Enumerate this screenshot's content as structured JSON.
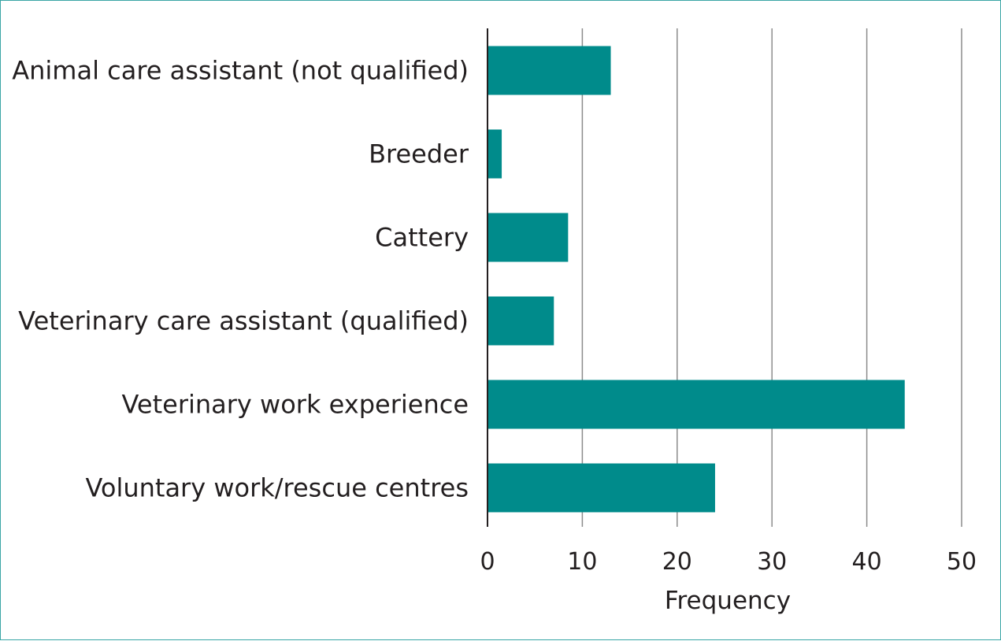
{
  "chart_data": {
    "type": "bar",
    "orientation": "horizontal",
    "categories": [
      "Animal care assistant (not qualified)",
      "Breeder",
      "Cattery",
      "Veterinary care assistant (qualified)",
      "Veterinary work experience",
      "Voluntary work/rescue centres"
    ],
    "values": [
      13,
      1.5,
      8.5,
      7,
      44,
      24
    ],
    "xlabel": "Frequency",
    "ylabel": "",
    "xlim": [
      0,
      50
    ],
    "xticks": [
      0,
      10,
      20,
      30,
      40,
      50
    ],
    "grid": "vertical",
    "bar_color": "#008b8b",
    "grid_color": "#8c8c8c",
    "border_color": "#3aa6a6"
  }
}
